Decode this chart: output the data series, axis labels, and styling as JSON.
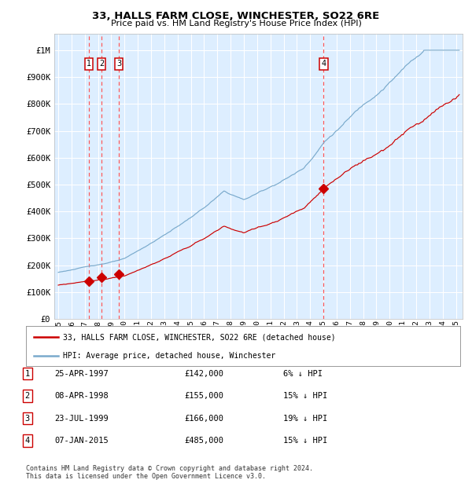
{
  "title": "33, HALLS FARM CLOSE, WINCHESTER, SO22 6RE",
  "subtitle": "Price paid vs. HM Land Registry's House Price Index (HPI)",
  "bg_color": "#ddeeff",
  "grid_color": "#ffffff",
  "red_line_color": "#cc0000",
  "blue_line_color": "#7aaacc",
  "sale_marker_color": "#cc0000",
  "vline_color": "#ff5555",
  "y_ticks": [
    0,
    100000,
    200000,
    300000,
    400000,
    500000,
    600000,
    700000,
    800000,
    900000,
    1000000
  ],
  "y_tick_labels": [
    "£0",
    "£100K",
    "£200K",
    "£300K",
    "£400K",
    "£500K",
    "£600K",
    "£700K",
    "£800K",
    "£900K",
    "£1M"
  ],
  "ylim": [
    0,
    1060000
  ],
  "xlim_start": 1994.7,
  "xlim_end": 2025.5,
  "sales": [
    {
      "label": "1",
      "date_str": "25-APR-1997",
      "year": 1997.31,
      "price": 142000
    },
    {
      "label": "2",
      "date_str": "08-APR-1998",
      "year": 1998.27,
      "price": 155000
    },
    {
      "label": "3",
      "date_str": "23-JUL-1999",
      "year": 1999.56,
      "price": 166000
    },
    {
      "label": "4",
      "date_str": "07-JAN-2015",
      "year": 2015.02,
      "price": 485000
    }
  ],
  "legend_entries": [
    "33, HALLS FARM CLOSE, WINCHESTER, SO22 6RE (detached house)",
    "HPI: Average price, detached house, Winchester"
  ],
  "footnote1": "Contains HM Land Registry data © Crown copyright and database right 2024.",
  "footnote2": "This data is licensed under the Open Government Licence v3.0.",
  "table_rows": [
    [
      "1",
      "25-APR-1997",
      "£142,000",
      "6% ↓ HPI"
    ],
    [
      "2",
      "08-APR-1998",
      "£155,000",
      "15% ↓ HPI"
    ],
    [
      "3",
      "23-JUL-1999",
      "£166,000",
      "19% ↓ HPI"
    ],
    [
      "4",
      "07-JAN-2015",
      "£485,000",
      "15% ↓ HPI"
    ]
  ]
}
